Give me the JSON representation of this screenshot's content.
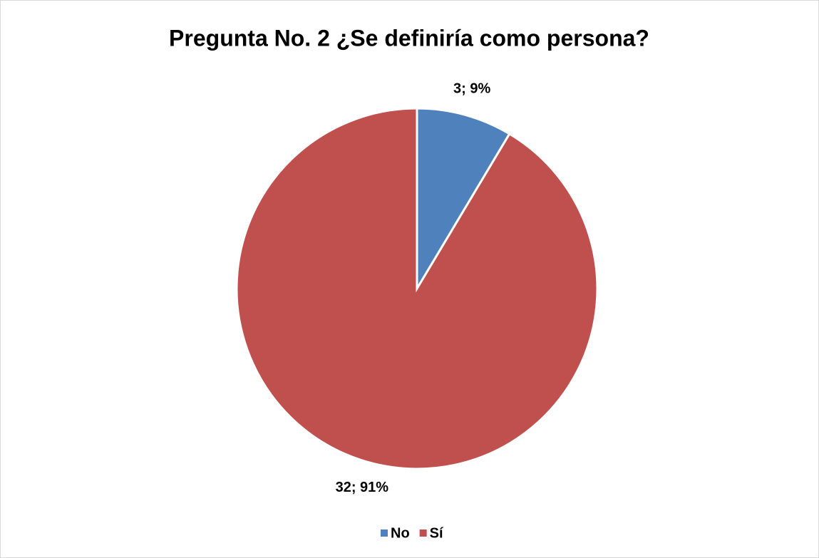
{
  "chart_data": {
    "type": "pie",
    "title": "Pregunta No. 2 ¿Se definiría como persona?",
    "categories": [
      "No",
      "Sí"
    ],
    "values": [
      3,
      32
    ],
    "value_labels": [
      "3; 9%",
      "32; 91%"
    ],
    "colors": [
      "#4f81bd",
      "#c0504d"
    ],
    "legend": "bottom"
  }
}
